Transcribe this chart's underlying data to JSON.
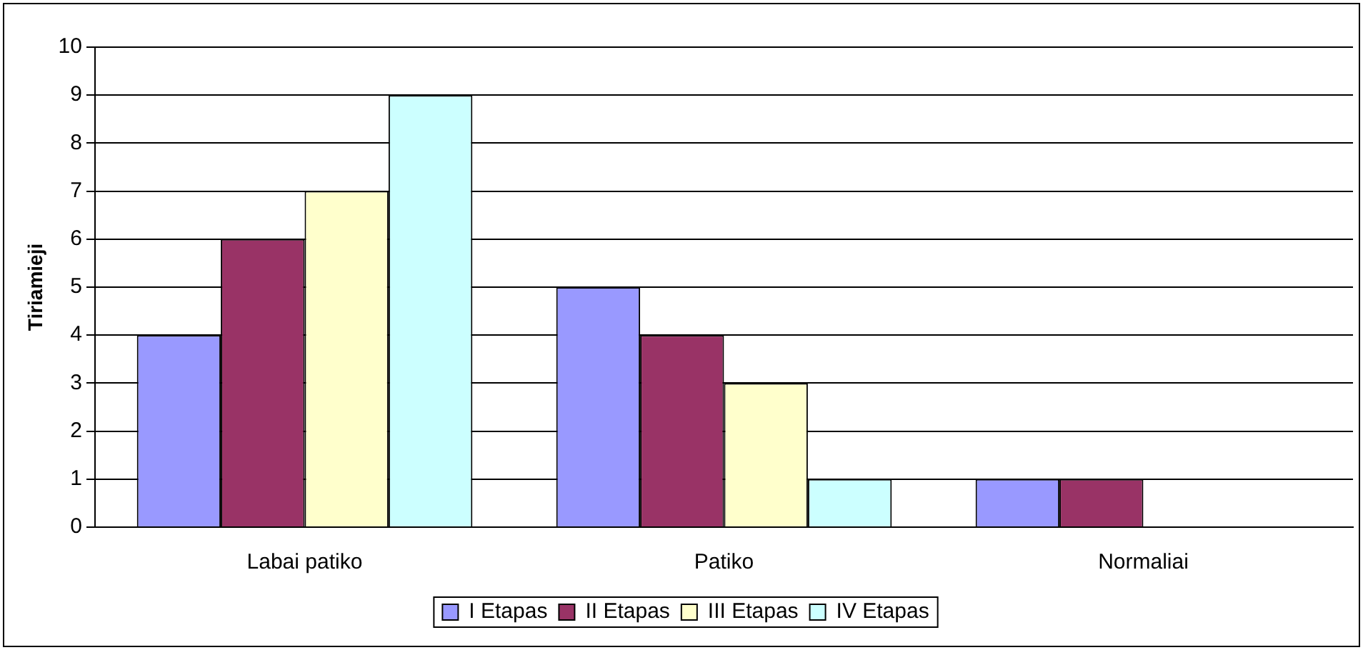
{
  "chart_data": {
    "type": "bar",
    "ylabel": "Tiriamieji",
    "categories": [
      "Labai patiko",
      "Patiko",
      "Normaliai"
    ],
    "series": [
      {
        "name": "I Etapas",
        "color": "#9999ff",
        "values": [
          4,
          5,
          1
        ]
      },
      {
        "name": "II Etapas",
        "color": "#993366",
        "values": [
          6,
          4,
          1
        ]
      },
      {
        "name": "III Etapas",
        "color": "#ffffcc",
        "values": [
          7,
          3,
          0
        ]
      },
      {
        "name": "IV Etapas",
        "color": "#ccffff",
        "values": [
          9,
          1,
          0
        ]
      }
    ],
    "ylim": [
      0,
      10
    ],
    "yticks": [
      0,
      1,
      2,
      3,
      4,
      5,
      6,
      7,
      8,
      9,
      10
    ],
    "grid": "y",
    "legend": "bottom"
  }
}
